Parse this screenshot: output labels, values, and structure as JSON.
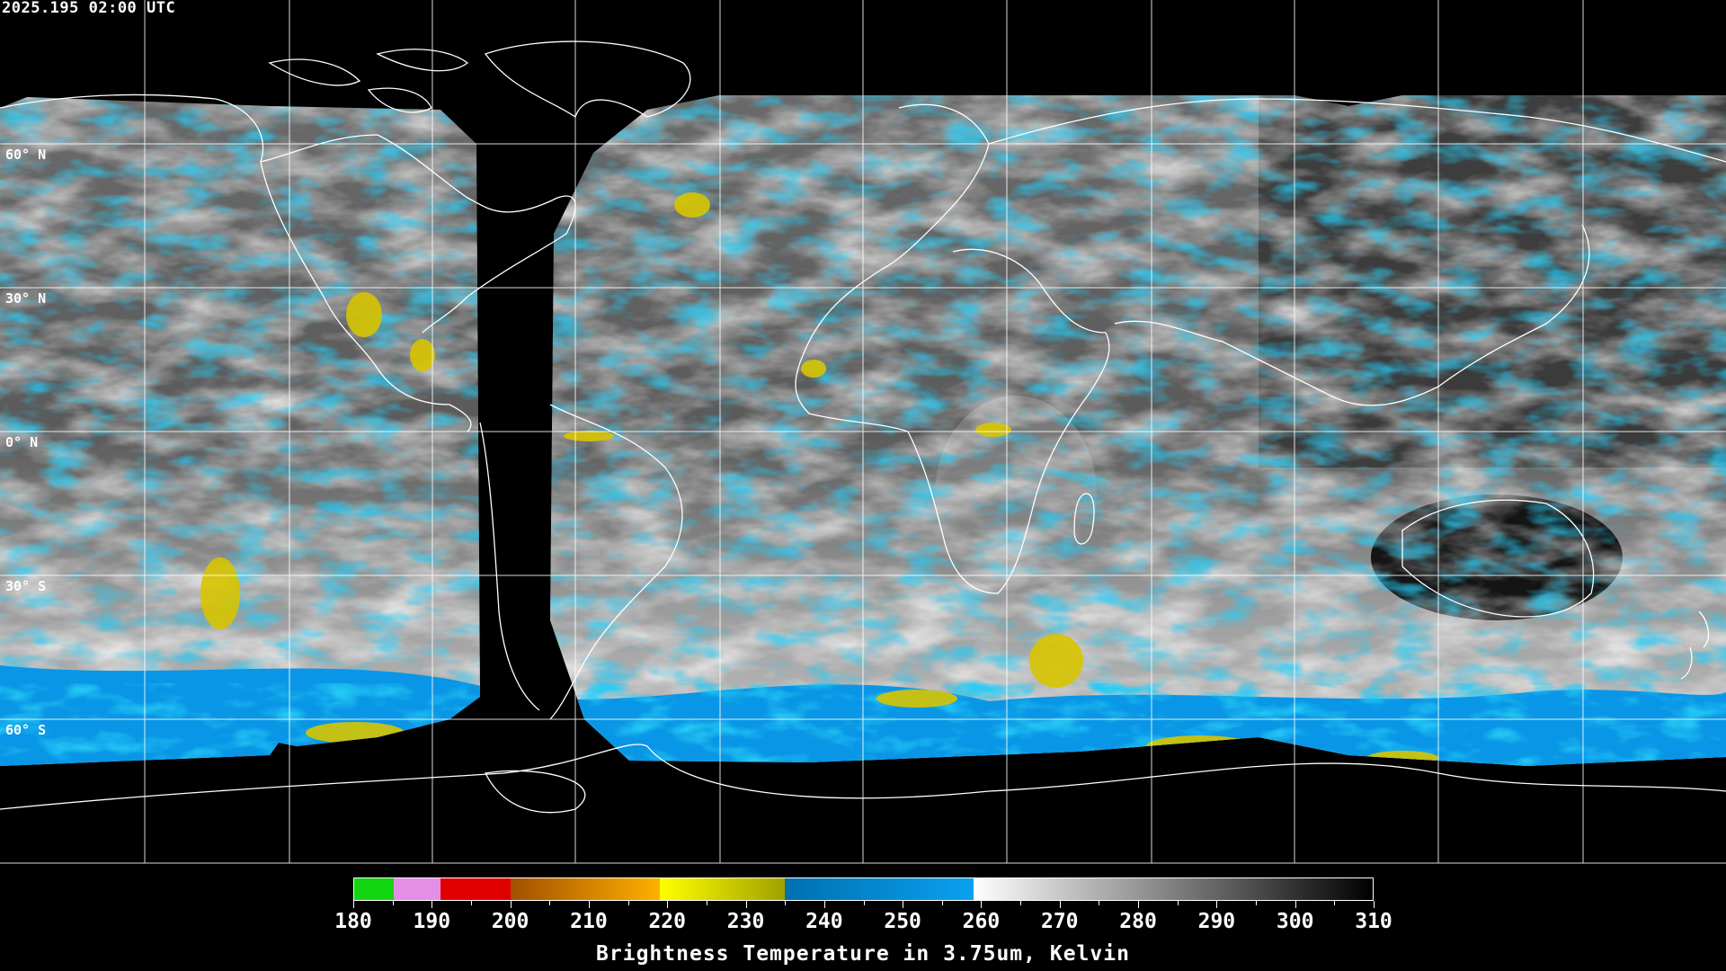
{
  "header": {
    "timestamp": "2025.195 02:00 UTC"
  },
  "map": {
    "projection": "equirectangular",
    "grid_longitude_step_deg": 30,
    "latitude_labels": [
      "60° N",
      "30° N",
      "0° N",
      "30° S",
      "60° S"
    ],
    "colors": {
      "background": "#000000",
      "gridlines": "#ffffff",
      "coastlines": "#ffffff",
      "data_gap": "#000000"
    }
  },
  "colorbar": {
    "ticks": [
      "180",
      "190",
      "200",
      "210",
      "220",
      "230",
      "240",
      "250",
      "260",
      "270",
      "280",
      "290",
      "300",
      "310"
    ],
    "min": 180,
    "max": 310,
    "title": "Brightness Temperature in 3.75um, Kelvin",
    "segments": [
      {
        "from": 180,
        "to": 185,
        "color": "#11d611"
      },
      {
        "from": 185,
        "to": 191,
        "color": "#e58ee5"
      },
      {
        "from": 191,
        "to": 200,
        "color": "#e10000"
      },
      {
        "from": 200,
        "to": 219,
        "gradient": [
          "#a05000",
          "#ffb000"
        ]
      },
      {
        "from": 219,
        "to": 235,
        "gradient": [
          "#ffff00",
          "#a0a000"
        ]
      },
      {
        "from": 235,
        "to": 259,
        "gradient": [
          "#0070b0",
          "#0aa0f0"
        ]
      },
      {
        "from": 259,
        "to": 310,
        "gradient": [
          "#ffffff",
          "#000000"
        ]
      }
    ]
  }
}
